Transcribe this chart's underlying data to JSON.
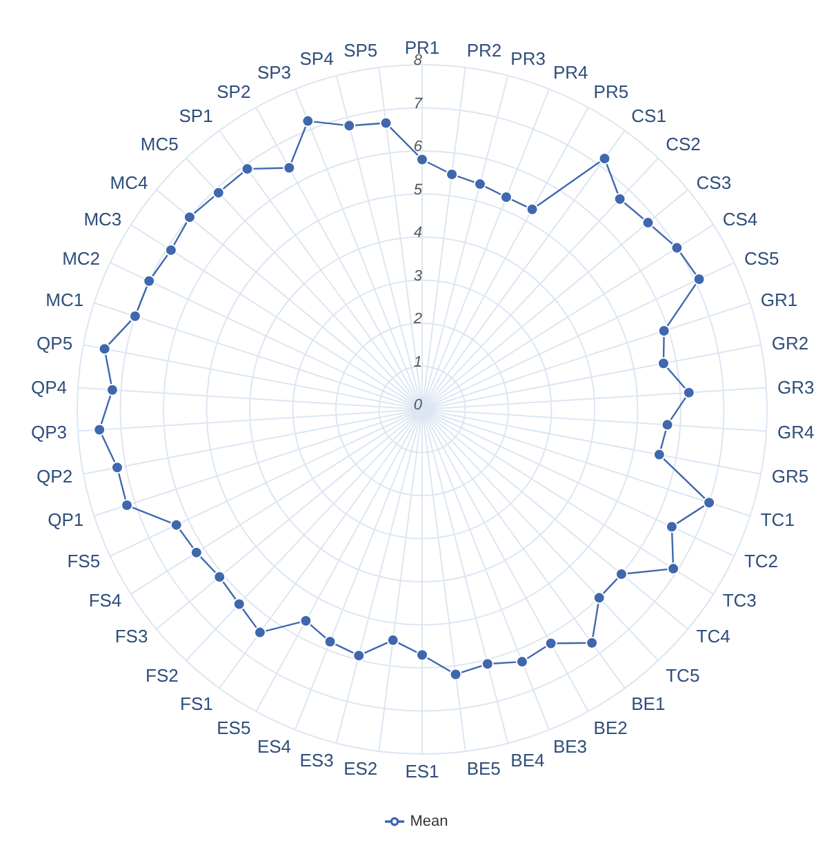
{
  "chart_data": {
    "type": "radar",
    "categories": [
      "PR1",
      "PR2",
      "PR3",
      "PR4",
      "PR5",
      "CS1",
      "CS2",
      "CS3",
      "CS4",
      "CS5",
      "GR1",
      "GR2",
      "GR3",
      "GR4",
      "GR5",
      "TC1",
      "TC2",
      "TC3",
      "TC4",
      "TC5",
      "BE1",
      "BE2",
      "BE3",
      "BE4",
      "BE5",
      "ES1",
      "ES2",
      "ES3",
      "ES4",
      "ES5",
      "FS1",
      "FS2",
      "FS3",
      "FS4",
      "FS5",
      "QP1",
      "QP2",
      "QP3",
      "QP4",
      "QP5",
      "MC1",
      "MC2",
      "MC3",
      "MC4",
      "MC5",
      "SP1",
      "SP2",
      "SP3",
      "SP4",
      "SP5"
    ],
    "series": [
      {
        "name": "Mean",
        "color": "#3f67ad",
        "values": [
          5.8,
          5.5,
          5.4,
          5.3,
          5.3,
          7.2,
          6.7,
          6.8,
          7.0,
          7.1,
          5.9,
          5.7,
          6.2,
          5.7,
          5.6,
          7.0,
          6.4,
          6.9,
          6.0,
          6.0,
          6.7,
          6.2,
          6.3,
          6.1,
          6.2,
          5.7,
          5.4,
          5.9,
          5.8,
          5.6,
          6.4,
          6.2,
          6.1,
          6.2,
          6.3,
          7.2,
          7.2,
          7.5,
          7.2,
          7.5,
          7.0,
          7.0,
          6.9,
          7.0,
          6.9,
          6.9,
          6.4,
          7.2,
          6.8,
          6.7
        ]
      }
    ],
    "ylim": [
      0,
      8
    ],
    "yticks": [
      0,
      1,
      2,
      3,
      4,
      5,
      6,
      7,
      8
    ],
    "grid": true,
    "legend": "bottom",
    "marker": "circle"
  }
}
